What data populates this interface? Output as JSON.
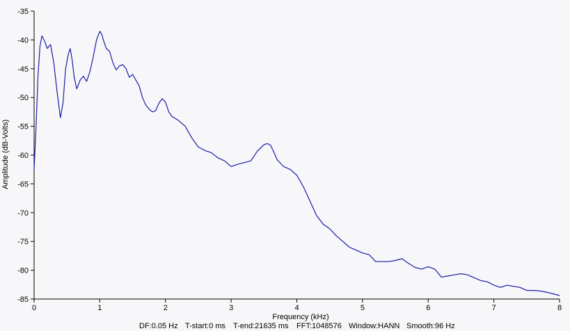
{
  "colors": {
    "background": "#f7f7f9",
    "axis": "#000000",
    "series": "#1a1aa8"
  },
  "footer": {
    "df": "DF:0.05 Hz",
    "t_start": "T-start:0 ms",
    "t_end": "T-end:21635 ms",
    "fft": "FFT:1048576",
    "window": "Window:HANN",
    "smooth": "Smooth:96 Hz"
  },
  "chart_data": {
    "type": "line",
    "title": "",
    "xlabel": "Frequency (kHz)",
    "ylabel": "Amplitude (dB-Volts)",
    "xlim": [
      0,
      8
    ],
    "ylim": [
      -85,
      -35
    ],
    "x_ticks": [
      0,
      1,
      2,
      3,
      4,
      5,
      6,
      7,
      8
    ],
    "y_ticks": [
      -35,
      -40,
      -45,
      -50,
      -55,
      -60,
      -65,
      -70,
      -75,
      -80,
      -85
    ],
    "grid": false,
    "series": [
      {
        "values_x": [
          0.0,
          0.03,
          0.06,
          0.09,
          0.12,
          0.16,
          0.2,
          0.25,
          0.3,
          0.35,
          0.4,
          0.44,
          0.48,
          0.52,
          0.55,
          0.58,
          0.61,
          0.65,
          0.7,
          0.75,
          0.8,
          0.85,
          0.9,
          0.95,
          1.0,
          1.03,
          1.06,
          1.1,
          1.15,
          1.2,
          1.25,
          1.3,
          1.35,
          1.4,
          1.45,
          1.5,
          1.55,
          1.6,
          1.65,
          1.7,
          1.75,
          1.8,
          1.85,
          1.9,
          1.95,
          2.0,
          2.05,
          2.1,
          2.2,
          2.3,
          2.4,
          2.5,
          2.6,
          2.7,
          2.8,
          2.9,
          3.0,
          3.1,
          3.2,
          3.3,
          3.4,
          3.5,
          3.55,
          3.6,
          3.65,
          3.7,
          3.8,
          3.9,
          4.0,
          4.1,
          4.2,
          4.3,
          4.4,
          4.5,
          4.6,
          4.7,
          4.8,
          4.9,
          5.0,
          5.1,
          5.2,
          5.3,
          5.4,
          5.5,
          5.6,
          5.7,
          5.8,
          5.9,
          6.0,
          6.1,
          6.2,
          6.3,
          6.4,
          6.5,
          6.6,
          6.7,
          6.8,
          6.9,
          7.0,
          7.1,
          7.2,
          7.3,
          7.4,
          7.5,
          7.6,
          7.7,
          7.8,
          7.9,
          8.0
        ],
        "values_y": [
          -62.5,
          -55.0,
          -46.0,
          -41.0,
          -39.3,
          -40.2,
          -41.5,
          -40.8,
          -44.0,
          -49.0,
          -53.5,
          -51.0,
          -45.0,
          -42.5,
          -41.5,
          -43.5,
          -46.5,
          -48.5,
          -47.0,
          -46.3,
          -47.2,
          -45.5,
          -43.0,
          -40.0,
          -38.5,
          -39.0,
          -40.2,
          -41.5,
          -42.0,
          -44.0,
          -45.2,
          -44.5,
          -44.3,
          -45.0,
          -46.5,
          -46.0,
          -47.0,
          -48.0,
          -50.0,
          -51.3,
          -52.0,
          -52.5,
          -52.3,
          -51.0,
          -50.2,
          -50.8,
          -52.5,
          -53.3,
          -54.0,
          -55.0,
          -57.0,
          -58.6,
          -59.2,
          -59.6,
          -60.5,
          -61.0,
          -62.0,
          -61.6,
          -61.3,
          -61.0,
          -59.3,
          -58.2,
          -58.0,
          -58.3,
          -59.5,
          -60.8,
          -62.0,
          -62.5,
          -63.5,
          -65.5,
          -68.0,
          -70.5,
          -72.0,
          -72.8,
          -74.0,
          -75.0,
          -76.0,
          -76.5,
          -77.0,
          -77.3,
          -78.5,
          -78.5,
          -78.5,
          -78.3,
          -78.0,
          -78.8,
          -79.5,
          -79.8,
          -79.4,
          -79.8,
          -81.2,
          -81.0,
          -80.8,
          -80.6,
          -80.8,
          -81.3,
          -81.8,
          -82.0,
          -82.6,
          -83.0,
          -82.6,
          -82.8,
          -83.0,
          -83.5,
          -83.5,
          -83.6,
          -83.8,
          -84.1,
          -84.4
        ]
      }
    ]
  }
}
